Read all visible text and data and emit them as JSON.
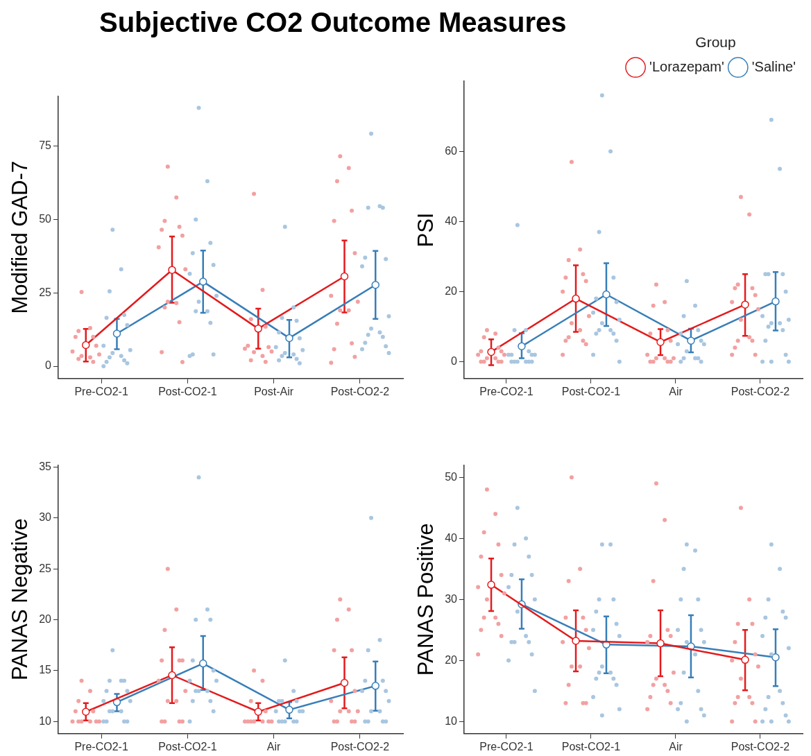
{
  "chart_data": [
    {
      "type": "line",
      "title": "Subjective CO2 Outcome Measures",
      "ylabel": "Modified GAD-7",
      "categories": [
        "Pre-CO2-1",
        "Post-CO2-1",
        "Post-Air",
        "Post-CO2-2"
      ],
      "ylim": [
        -4.2,
        92
      ],
      "yticks": [
        0,
        25,
        50,
        75
      ],
      "grid": false,
      "marker": "circle",
      "series": [
        {
          "color": "#e41a1c",
          "values": [
            7.2,
            32.8,
            12.8,
            30.6
          ],
          "errors": [
            [
              1.6,
              12.7
            ],
            [
              21.6,
              44.2
            ],
            [
              6.0,
              19.6
            ],
            [
              18.3,
              42.8
            ]
          ]
        },
        {
          "color": "#377eb8",
          "values": [
            11.1,
            28.8,
            9.6,
            27.7
          ],
          "errors": [
            [
              5.8,
              16.1
            ],
            [
              18.2,
              39.4
            ],
            [
              3.0,
              15.8
            ],
            [
              16.1,
              39.3
            ]
          ]
        },
        {
          "type": "scatter",
          "color": "#f2a0a1",
          "x": [
            "Pre-CO2-1",
            "Pre-CO2-1",
            "Pre-CO2-1",
            "Pre-CO2-1",
            "Pre-CO2-1",
            "Pre-CO2-1",
            "Pre-CO2-1",
            "Pre-CO2-1",
            "Pre-CO2-1",
            "Pre-CO2-1",
            "Pre-CO2-1",
            "Pre-CO2-1",
            "Post-CO2-1",
            "Post-CO2-1",
            "Post-CO2-1",
            "Post-CO2-1",
            "Post-CO2-1",
            "Post-CO2-1",
            "Post-CO2-1",
            "Post-CO2-1",
            "Post-CO2-1",
            "Post-CO2-1",
            "Post-CO2-1",
            "Post-CO2-1",
            "Post-CO2-1",
            "Post-CO2-1",
            "Post-Air",
            "Post-Air",
            "Post-Air",
            "Post-Air",
            "Post-Air",
            "Post-Air",
            "Post-Air",
            "Post-Air",
            "Post-Air",
            "Post-Air",
            "Post-Air",
            "Post-Air",
            "Post-CO2-2",
            "Post-CO2-2",
            "Post-CO2-2",
            "Post-CO2-2",
            "Post-CO2-2",
            "Post-CO2-2",
            "Post-CO2-2",
            "Post-CO2-2",
            "Post-CO2-2",
            "Post-CO2-2",
            "Post-CO2-2",
            "Post-CO2-2",
            "Post-CO2-2",
            "Post-CO2-2",
            "Post-CO2-2"
          ],
          "values": [
            25.3,
            13,
            12,
            10,
            10,
            7,
            5,
            4,
            3.5,
            3,
            2.5,
            1.5,
            68,
            57.5,
            49.5,
            47.5,
            46.5,
            44.5,
            40.5,
            33,
            22,
            21.5,
            20,
            15,
            4.8,
            1.4,
            58.7,
            26,
            16,
            13.5,
            7,
            6.5,
            6,
            5,
            4.8,
            3.5,
            2,
            1.5,
            71.5,
            67.5,
            63,
            53,
            49.5,
            38.5,
            24,
            22,
            19,
            19,
            14.5,
            7.8,
            5.8,
            3.2,
            1.2
          ]
        },
        {
          "type": "scatter",
          "color": "#a9c6e0",
          "x": [
            "Pre-CO2-1",
            "Pre-CO2-1",
            "Pre-CO2-1",
            "Pre-CO2-1",
            "Pre-CO2-1",
            "Pre-CO2-1",
            "Pre-CO2-1",
            "Pre-CO2-1",
            "Pre-CO2-1",
            "Pre-CO2-1",
            "Pre-CO2-1",
            "Pre-CO2-1",
            "Pre-CO2-1",
            "Pre-CO2-1",
            "Pre-CO2-1",
            "Post-CO2-1",
            "Post-CO2-1",
            "Post-CO2-1",
            "Post-CO2-1",
            "Post-CO2-1",
            "Post-CO2-1",
            "Post-CO2-1",
            "Post-CO2-1",
            "Post-CO2-1",
            "Post-CO2-1",
            "Post-CO2-1",
            "Post-CO2-1",
            "Post-CO2-1",
            "Post-CO2-1",
            "Post-CO2-1",
            "Post-Air",
            "Post-Air",
            "Post-Air",
            "Post-Air",
            "Post-Air",
            "Post-Air",
            "Post-Air",
            "Post-Air",
            "Post-Air",
            "Post-Air",
            "Post-Air",
            "Post-Air",
            "Post-Air",
            "Post-Air",
            "Post-CO2-2",
            "Post-CO2-2",
            "Post-CO2-2",
            "Post-CO2-2",
            "Post-CO2-2",
            "Post-CO2-2",
            "Post-CO2-2",
            "Post-CO2-2",
            "Post-CO2-2",
            "Post-CO2-2",
            "Post-CO2-2",
            "Post-CO2-2",
            "Post-CO2-2",
            "Post-CO2-2",
            "Post-CO2-2",
            "Post-CO2-2"
          ],
          "values": [
            46.5,
            33,
            25.5,
            17.5,
            16.5,
            14,
            7,
            5.5,
            4.5,
            3.5,
            3,
            2,
            1.5,
            1,
            0,
            88,
            63,
            50,
            42,
            38.5,
            34.5,
            31.5,
            24,
            22,
            18.7,
            18.7,
            14.8,
            4,
            4,
            3.5,
            47.5,
            20,
            16.5,
            15.5,
            11.5,
            9.5,
            6.5,
            5.5,
            4.5,
            4,
            3.5,
            2.5,
            2,
            1,
            79.2,
            54.5,
            54,
            54,
            37,
            36.5,
            34,
            17,
            12.8,
            11.5,
            10.7,
            10,
            8,
            6.8,
            5.8,
            4.5
          ]
        }
      ]
    },
    {
      "type": "line",
      "ylabel": "PSI",
      "legend": "top right",
      "legend_title": "Group",
      "categories": [
        "Pre-CO2-1",
        "Post-CO2-1",
        "Air",
        "Post-CO2-2"
      ],
      "ylim": [
        -4.8,
        80
      ],
      "yticks": [
        0,
        20,
        40,
        60
      ],
      "grid": false,
      "marker": "circle",
      "series": [
        {
          "name": "'Lorazepam'",
          "color": "#e41a1c",
          "values": [
            2.8,
            18.0,
            5.6,
            16.3
          ],
          "errors": [
            [
              -1.0,
              6.4
            ],
            [
              8.5,
              27.5
            ],
            [
              1.9,
              9.3
            ],
            [
              7.4,
              25.0
            ]
          ]
        },
        {
          "name": "'Saline'",
          "color": "#377eb8",
          "values": [
            4.4,
            19.2,
            6.0,
            17.2
          ],
          "errors": [
            [
              1.0,
              8.1
            ],
            [
              10.2,
              28.1
            ],
            [
              2.7,
              9.4
            ],
            [
              8.9,
              25.6
            ]
          ]
        },
        {
          "type": "scatter",
          "color": "#f2a0a1",
          "x": [
            "Pre-CO2-1",
            "Pre-CO2-1",
            "Pre-CO2-1",
            "Pre-CO2-1",
            "Pre-CO2-1",
            "Pre-CO2-1",
            "Pre-CO2-1",
            "Pre-CO2-1",
            "Pre-CO2-1",
            "Pre-CO2-1",
            "Pre-CO2-1",
            "Pre-CO2-1",
            "Pre-CO2-1",
            "Pre-CO2-1",
            "Post-CO2-1",
            "Post-CO2-1",
            "Post-CO2-1",
            "Post-CO2-1",
            "Post-CO2-1",
            "Post-CO2-1",
            "Post-CO2-1",
            "Post-CO2-1",
            "Post-CO2-1",
            "Post-CO2-1",
            "Post-CO2-1",
            "Post-CO2-1",
            "Post-CO2-1",
            "Post-CO2-1",
            "Post-CO2-1",
            "Air",
            "Air",
            "Air",
            "Air",
            "Air",
            "Air",
            "Air",
            "Air",
            "Air",
            "Air",
            "Air",
            "Air",
            "Air",
            "Air",
            "Post-CO2-2",
            "Post-CO2-2",
            "Post-CO2-2",
            "Post-CO2-2",
            "Post-CO2-2",
            "Post-CO2-2",
            "Post-CO2-2",
            "Post-CO2-2",
            "Post-CO2-2",
            "Post-CO2-2",
            "Post-CO2-2",
            "Post-CO2-2",
            "Post-CO2-2",
            "Post-CO2-2",
            "Post-CO2-2"
          ],
          "values": [
            9,
            8,
            7,
            4,
            3,
            3,
            2,
            2,
            1,
            1,
            0,
            0,
            0,
            0,
            57,
            32,
            29,
            25,
            24,
            23,
            20,
            13,
            11,
            9,
            7,
            6,
            6,
            5,
            2,
            22,
            17,
            16,
            9,
            8,
            6,
            2,
            1,
            1,
            1,
            0,
            0,
            0,
            0,
            47,
            42,
            22,
            21,
            21,
            19,
            17,
            15,
            12,
            7,
            6,
            6,
            4,
            2,
            2
          ]
        },
        {
          "type": "scatter",
          "color": "#a9c6e0",
          "x": [
            "Pre-CO2-1",
            "Pre-CO2-1",
            "Pre-CO2-1",
            "Pre-CO2-1",
            "Pre-CO2-1",
            "Pre-CO2-1",
            "Pre-CO2-1",
            "Pre-CO2-1",
            "Pre-CO2-1",
            "Pre-CO2-1",
            "Pre-CO2-1",
            "Pre-CO2-1",
            "Pre-CO2-1",
            "Pre-CO2-1",
            "Post-CO2-1",
            "Post-CO2-1",
            "Post-CO2-1",
            "Post-CO2-1",
            "Post-CO2-1",
            "Post-CO2-1",
            "Post-CO2-1",
            "Post-CO2-1",
            "Post-CO2-1",
            "Post-CO2-1",
            "Post-CO2-1",
            "Post-CO2-1",
            "Post-CO2-1",
            "Post-CO2-1",
            "Post-CO2-1",
            "Post-CO2-1",
            "Air",
            "Air",
            "Air",
            "Air",
            "Air",
            "Air",
            "Air",
            "Air",
            "Air",
            "Air",
            "Air",
            "Air",
            "Air",
            "Air",
            "Post-CO2-2",
            "Post-CO2-2",
            "Post-CO2-2",
            "Post-CO2-2",
            "Post-CO2-2",
            "Post-CO2-2",
            "Post-CO2-2",
            "Post-CO2-2",
            "Post-CO2-2",
            "Post-CO2-2",
            "Post-CO2-2",
            "Post-CO2-2",
            "Post-CO2-2",
            "Post-CO2-2",
            "Post-CO2-2",
            "Post-CO2-2",
            "Post-CO2-2"
          ],
          "values": [
            39,
            9,
            9,
            3,
            2,
            2,
            2,
            2,
            0,
            0,
            0,
            0,
            0,
            0,
            76,
            60,
            37,
            24,
            18,
            17,
            14,
            12,
            11,
            9,
            9,
            8,
            8,
            6,
            2,
            0,
            23,
            16,
            13,
            9,
            8,
            6,
            5,
            5,
            3,
            1,
            1,
            1,
            0,
            0,
            69,
            55,
            25,
            25,
            25,
            20,
            13,
            12,
            11,
            11,
            10,
            9,
            6,
            2,
            0,
            0,
            0
          ]
        }
      ]
    },
    {
      "type": "line",
      "ylabel": "PANAS Negative",
      "categories": [
        "Pre-CO2-1",
        "Post-CO2-1",
        "Air",
        "Post-CO2-2"
      ],
      "ylim": [
        8.8,
        35.2
      ],
      "yticks": [
        10,
        15,
        20,
        25,
        30,
        35
      ],
      "grid": false,
      "marker": "circle",
      "series": [
        {
          "color": "#e41a1c",
          "values": [
            10.95,
            14.55,
            10.95,
            13.8
          ],
          "errors": [
            [
              10.1,
              11.8
            ],
            [
              11.8,
              17.3
            ],
            [
              10.1,
              11.8
            ],
            [
              11.3,
              16.3
            ]
          ]
        },
        {
          "color": "#377eb8",
          "values": [
            11.9,
            15.7,
            11.15,
            13.5
          ],
          "errors": [
            [
              11.0,
              12.7
            ],
            [
              13.1,
              18.4
            ],
            [
              10.3,
              11.9
            ],
            [
              11.05,
              15.9
            ]
          ]
        },
        {
          "type": "scatter",
          "color": "#f2a0a1",
          "x": [
            "Pre-CO2-1",
            "Pre-CO2-1",
            "Pre-CO2-1",
            "Pre-CO2-1",
            "Pre-CO2-1",
            "Pre-CO2-1",
            "Pre-CO2-1",
            "Pre-CO2-1",
            "Pre-CO2-1",
            "Pre-CO2-1",
            "Pre-CO2-1",
            "Post-CO2-1",
            "Post-CO2-1",
            "Post-CO2-1",
            "Post-CO2-1",
            "Post-CO2-1",
            "Post-CO2-1",
            "Post-CO2-1",
            "Post-CO2-1",
            "Post-CO2-1",
            "Post-CO2-1",
            "Post-CO2-1",
            "Post-CO2-1",
            "Post-CO2-1",
            "Post-CO2-1",
            "Air",
            "Air",
            "Air",
            "Air",
            "Air",
            "Air",
            "Air",
            "Air",
            "Air",
            "Air",
            "Air",
            "Post-CO2-2",
            "Post-CO2-2",
            "Post-CO2-2",
            "Post-CO2-2",
            "Post-CO2-2",
            "Post-CO2-2",
            "Post-CO2-2",
            "Post-CO2-2",
            "Post-CO2-2",
            "Post-CO2-2",
            "Post-CO2-2",
            "Post-CO2-2",
            "Post-CO2-2",
            "Post-CO2-2"
          ],
          "values": [
            14,
            13,
            12,
            11,
            11,
            10,
            10,
            10,
            10,
            10,
            10,
            25,
            21,
            19,
            16,
            16,
            16,
            14,
            13,
            12,
            12,
            10,
            10,
            10,
            10,
            15,
            14,
            12,
            11,
            10,
            10,
            10,
            10,
            10,
            10,
            10,
            22,
            21,
            20,
            17,
            17,
            13,
            12,
            11,
            11,
            11,
            10,
            10,
            10,
            10
          ]
        },
        {
          "type": "scatter",
          "color": "#a9c6e0",
          "x": [
            "Pre-CO2-1",
            "Pre-CO2-1",
            "Pre-CO2-1",
            "Pre-CO2-1",
            "Pre-CO2-1",
            "Pre-CO2-1",
            "Pre-CO2-1",
            "Pre-CO2-1",
            "Pre-CO2-1",
            "Pre-CO2-1",
            "Pre-CO2-1",
            "Pre-CO2-1",
            "Pre-CO2-1",
            "Pre-CO2-1",
            "Pre-CO2-1",
            "Post-CO2-1",
            "Post-CO2-1",
            "Post-CO2-1",
            "Post-CO2-1",
            "Post-CO2-1",
            "Post-CO2-1",
            "Post-CO2-1",
            "Post-CO2-1",
            "Post-CO2-1",
            "Post-CO2-1",
            "Post-CO2-1",
            "Post-CO2-1",
            "Post-CO2-1",
            "Post-CO2-1",
            "Post-CO2-1",
            "Air",
            "Air",
            "Air",
            "Air",
            "Air",
            "Air",
            "Air",
            "Air",
            "Air",
            "Air",
            "Air",
            "Air",
            "Air",
            "Post-CO2-2",
            "Post-CO2-2",
            "Post-CO2-2",
            "Post-CO2-2",
            "Post-CO2-2",
            "Post-CO2-2",
            "Post-CO2-2",
            "Post-CO2-2",
            "Post-CO2-2",
            "Post-CO2-2",
            "Post-CO2-2",
            "Post-CO2-2",
            "Post-CO2-2",
            "Post-CO2-2"
          ],
          "values": [
            17,
            14,
            14,
            14,
            13,
            13,
            12,
            12,
            11,
            11,
            11,
            10,
            10,
            10,
            10,
            34,
            21,
            20,
            20,
            16,
            15,
            14,
            14,
            13,
            13,
            13,
            12,
            12,
            11,
            10,
            16,
            13,
            12,
            12,
            12,
            11,
            11,
            11,
            10,
            10,
            10,
            10,
            10,
            30,
            18,
            17,
            14,
            14,
            13,
            13,
            12,
            11,
            11,
            10,
            10,
            10,
            10
          ]
        }
      ]
    },
    {
      "type": "line",
      "ylabel": "PANAS Positive",
      "categories": [
        "Pre-CO2-1",
        "Post-CO2-1",
        "Air",
        "Post-CO2-2"
      ],
      "ylim": [
        8,
        52
      ],
      "yticks": [
        10,
        20,
        30,
        40,
        50
      ],
      "grid": false,
      "marker": "circle",
      "series": [
        {
          "color": "#e41a1c",
          "values": [
            32.4,
            23.2,
            22.8,
            20.1
          ],
          "errors": [
            [
              28.1,
              36.7
            ],
            [
              18.2,
              28.2
            ],
            [
              17.4,
              28.2
            ],
            [
              15.1,
              25.0
            ]
          ]
        },
        {
          "color": "#377eb8",
          "values": [
            29.2,
            22.6,
            22.3,
            20.5
          ],
          "errors": [
            [
              25.2,
              33.3
            ],
            [
              17.9,
              27.2
            ],
            [
              17.2,
              27.4
            ],
            [
              15.8,
              25.1
            ]
          ]
        },
        {
          "type": "scatter",
          "color": "#f2a0a1",
          "x": [
            "Pre-CO2-1",
            "Pre-CO2-1",
            "Pre-CO2-1",
            "Pre-CO2-1",
            "Pre-CO2-1",
            "Pre-CO2-1",
            "Pre-CO2-1",
            "Pre-CO2-1",
            "Pre-CO2-1",
            "Pre-CO2-1",
            "Pre-CO2-1",
            "Pre-CO2-1",
            "Pre-CO2-1",
            "Pre-CO2-1",
            "Pre-CO2-1",
            "Post-CO2-1",
            "Post-CO2-1",
            "Post-CO2-1",
            "Post-CO2-1",
            "Post-CO2-1",
            "Post-CO2-1",
            "Post-CO2-1",
            "Post-CO2-1",
            "Post-CO2-1",
            "Post-CO2-1",
            "Post-CO2-1",
            "Post-CO2-1",
            "Post-CO2-1",
            "Post-CO2-1",
            "Air",
            "Air",
            "Air",
            "Air",
            "Air",
            "Air",
            "Air",
            "Air",
            "Air",
            "Air",
            "Air",
            "Air",
            "Air",
            "Air",
            "Air",
            "Post-CO2-2",
            "Post-CO2-2",
            "Post-CO2-2",
            "Post-CO2-2",
            "Post-CO2-2",
            "Post-CO2-2",
            "Post-CO2-2",
            "Post-CO2-2",
            "Post-CO2-2",
            "Post-CO2-2",
            "Post-CO2-2",
            "Post-CO2-2",
            "Post-CO2-2",
            "Post-CO2-2",
            "Post-CO2-2"
          ],
          "values": [
            48,
            44,
            41,
            39,
            37,
            34,
            32,
            31,
            30,
            27,
            27,
            26,
            25,
            24,
            21,
            50,
            35,
            33,
            27,
            27,
            25,
            23,
            22,
            19,
            19,
            16,
            13,
            13,
            13,
            49,
            43,
            33,
            25,
            24,
            24,
            23,
            18,
            17,
            16,
            16,
            15,
            14,
            13,
            12,
            45,
            30,
            26,
            26,
            23,
            21,
            20,
            19,
            17,
            14,
            14,
            13,
            13,
            10,
            10
          ]
        },
        {
          "type": "scatter",
          "color": "#a9c6e0",
          "x": [
            "Pre-CO2-1",
            "Pre-CO2-1",
            "Pre-CO2-1",
            "Pre-CO2-1",
            "Pre-CO2-1",
            "Pre-CO2-1",
            "Pre-CO2-1",
            "Pre-CO2-1",
            "Pre-CO2-1",
            "Pre-CO2-1",
            "Pre-CO2-1",
            "Pre-CO2-1",
            "Pre-CO2-1",
            "Pre-CO2-1",
            "Pre-CO2-1",
            "Pre-CO2-1",
            "Post-CO2-1",
            "Post-CO2-1",
            "Post-CO2-1",
            "Post-CO2-1",
            "Post-CO2-1",
            "Post-CO2-1",
            "Post-CO2-1",
            "Post-CO2-1",
            "Post-CO2-1",
            "Post-CO2-1",
            "Post-CO2-1",
            "Post-CO2-1",
            "Post-CO2-1",
            "Post-CO2-1",
            "Post-CO2-1",
            "Post-CO2-1",
            "Post-CO2-1",
            "Air",
            "Air",
            "Air",
            "Air",
            "Air",
            "Air",
            "Air",
            "Air",
            "Air",
            "Air",
            "Air",
            "Air",
            "Air",
            "Air",
            "Air",
            "Air",
            "Air",
            "Post-CO2-2",
            "Post-CO2-2",
            "Post-CO2-2",
            "Post-CO2-2",
            "Post-CO2-2",
            "Post-CO2-2",
            "Post-CO2-2",
            "Post-CO2-2",
            "Post-CO2-2",
            "Post-CO2-2",
            "Post-CO2-2",
            "Post-CO2-2",
            "Post-CO2-2",
            "Post-CO2-2",
            "Post-CO2-2",
            "Post-CO2-2",
            "Post-CO2-2"
          ],
          "values": [
            45,
            40,
            39,
            37,
            34,
            34,
            32,
            30,
            28,
            24,
            23,
            23,
            23,
            21,
            20,
            15,
            39,
            39,
            30,
            30,
            28,
            26,
            25,
            24,
            19,
            18,
            18,
            17,
            17,
            16,
            14,
            12,
            11,
            39,
            38,
            35,
            30,
            30,
            25,
            25,
            23,
            23,
            21,
            18,
            15,
            13,
            12,
            12,
            11,
            10,
            39,
            35,
            30,
            28,
            27,
            27,
            24,
            22,
            21,
            15,
            14,
            13,
            12,
            11,
            10,
            10,
            10
          ]
        }
      ]
    }
  ]
}
